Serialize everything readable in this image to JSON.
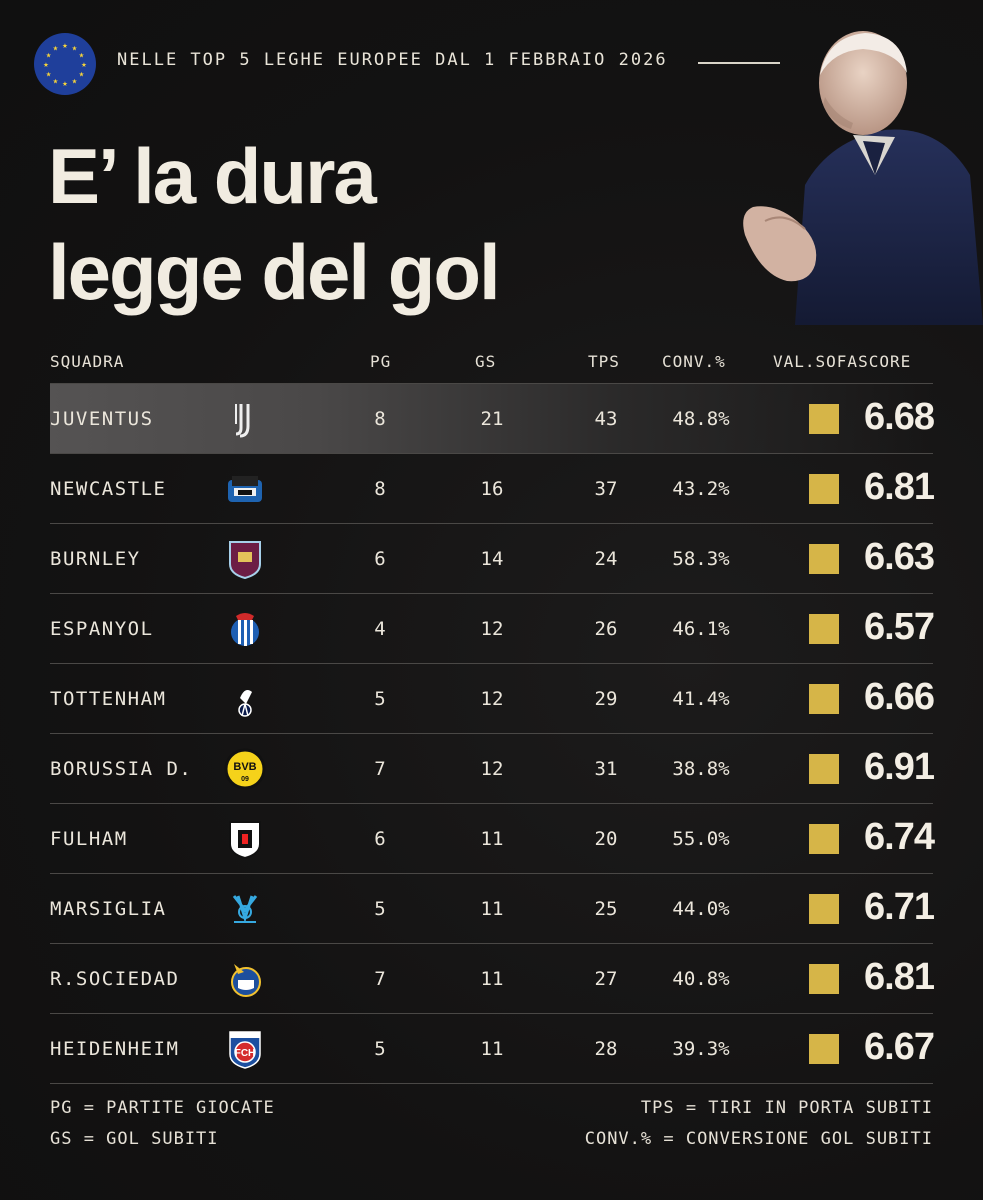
{
  "header": {
    "kicker": "NELLE TOP 5 LEGHE EUROPEE DAL 1 FEBBRAIO 2026",
    "title_line1": "E’ la dura",
    "title_line2": "legge del gol"
  },
  "columns": {
    "team": "SQUADRA",
    "pg": "PG",
    "gs": "GS",
    "tps": "TPS",
    "conv": "CONV.%",
    "val": "VAL.SOFASCORE"
  },
  "rows": [
    {
      "team": "JUVENTUS",
      "logo": "juventus-logo-icon",
      "pg": "8",
      "gs": "21",
      "tps": "43",
      "conv": "48.8%",
      "val": "6.68"
    },
    {
      "team": "NEWCASTLE",
      "logo": "newcastle-logo-icon",
      "pg": "8",
      "gs": "16",
      "tps": "37",
      "conv": "43.2%",
      "val": "6.81"
    },
    {
      "team": "BURNLEY",
      "logo": "burnley-logo-icon",
      "pg": "6",
      "gs": "14",
      "tps": "24",
      "conv": "58.3%",
      "val": "6.63"
    },
    {
      "team": "ESPANYOL",
      "logo": "espanyol-logo-icon",
      "pg": "4",
      "gs": "12",
      "tps": "26",
      "conv": "46.1%",
      "val": "6.57"
    },
    {
      "team": "TOTTENHAM",
      "logo": "tottenham-logo-icon",
      "pg": "5",
      "gs": "12",
      "tps": "29",
      "conv": "41.4%",
      "val": "6.66"
    },
    {
      "team": "BORUSSIA D.",
      "logo": "bvb-logo-icon",
      "pg": "7",
      "gs": "12",
      "tps": "31",
      "conv": "38.8%",
      "val": "6.91"
    },
    {
      "team": "FULHAM",
      "logo": "fulham-logo-icon",
      "pg": "6",
      "gs": "11",
      "tps": "20",
      "conv": "55.0%",
      "val": "6.74"
    },
    {
      "team": "MARSIGLIA",
      "logo": "marseille-logo-icon",
      "pg": "5",
      "gs": "11",
      "tps": "25",
      "conv": "44.0%",
      "val": "6.71"
    },
    {
      "team": "R.SOCIEDAD",
      "logo": "real-sociedad-logo-icon",
      "pg": "7",
      "gs": "11",
      "tps": "27",
      "conv": "40.8%",
      "val": "6.81"
    },
    {
      "team": "HEIDENHEIM",
      "logo": "heidenheim-logo-icon",
      "pg": "5",
      "gs": "11",
      "tps": "28",
      "conv": "39.3%",
      "val": "6.67"
    }
  ],
  "legend": {
    "pg": "PG = PARTITE GIOCATE",
    "gs": "GS = GOL SUBITI",
    "tps": "TPS = TIRI IN PORTA SUBITI",
    "conv": "CONV.% = CONVERSIONE GOL SUBITI"
  },
  "logo_text": {
    "bvb": "BVB",
    "bvb_year": "09",
    "heidenheim": "FCH"
  },
  "colors": {
    "background": "#141313",
    "text": "#ece7dc",
    "swatch": "#d6b548",
    "highlight_row": "#555353",
    "eu_blue": "#1f3f9b",
    "eu_star": "#f4d23c"
  }
}
